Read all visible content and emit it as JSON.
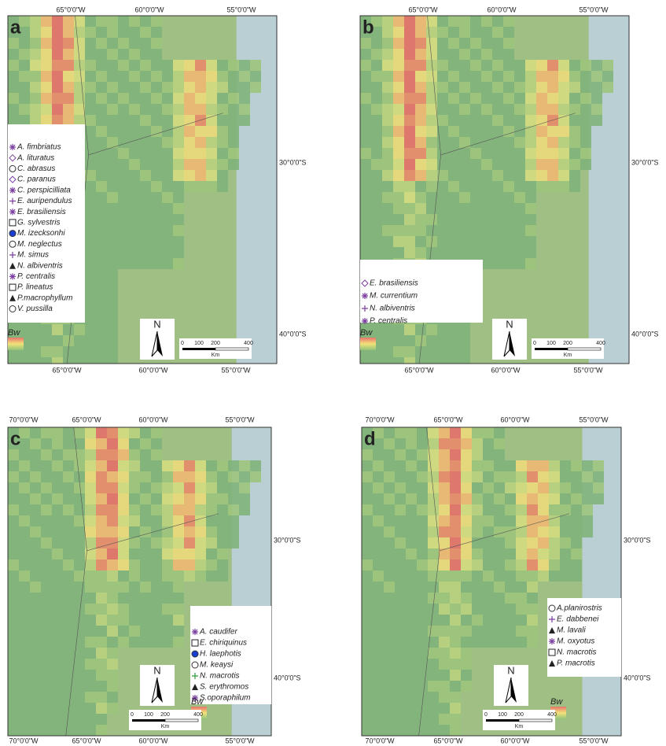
{
  "panels": [
    {
      "label": "a",
      "top_lon_labels": [
        "65°0'0\"W",
        "60°0'0\"W",
        "55°0'0\"W"
      ],
      "bottom_lon_labels": [
        "65°0'0\"W",
        "60°0'0\"W",
        "55°0'0\"W"
      ],
      "lat_labels": [
        "30°0'0\"S",
        "40°0'0\"S"
      ],
      "legend": [
        "A. fimbriatus",
        "A. lituratus",
        "C. abrasus",
        "C. paranus",
        "C. perspicilliata",
        "E. auripendulus",
        "E. brasiliensis",
        "G. sylvestris",
        "M. izecksonhi",
        "M. neglectus",
        "M. simus",
        "N. albiventris",
        "P. centralis",
        "P. lineatus",
        "P.macrophyllum",
        "V. pussilla"
      ],
      "climate": "Bw",
      "north": "N",
      "scale_ticks": [
        "0",
        "100",
        "200",
        "400"
      ],
      "scale_unit": "Km"
    },
    {
      "label": "b",
      "top_lon_labels": [
        "65°0'0\"W",
        "60°0'0\"W",
        "55°0'0\"W"
      ],
      "bottom_lon_labels": [
        "65°0'0\"W",
        "60°0'0\"W",
        "55°0'0\"W"
      ],
      "lat_labels": [
        "30°0'0\"S",
        "40°0'0\"S"
      ],
      "legend": [
        "E. brasiliensis",
        "M. currentium",
        "N. albiventris",
        "P. centralis"
      ],
      "climate": "Bw",
      "north": "N",
      "scale_ticks": [
        "0",
        "100",
        "200",
        "400"
      ],
      "scale_unit": "Km"
    },
    {
      "label": "c",
      "top_lon_labels": [
        "70°0'0\"W",
        "65°0'0\"W",
        "60°0'0\"W",
        "55°0'0\"W"
      ],
      "bottom_lon_labels": [
        "70°0'0\"W",
        "65°0'0\"W",
        "60°0'0\"W",
        "55°0'0\"W"
      ],
      "lat_labels": [
        "30°0'0\"S",
        "40°0'0\"S"
      ],
      "legend": [
        "A. caudifer",
        "E. chiriquinus",
        "H. laephotis",
        "M. keaysi",
        "N. macrotis",
        "S. erythromos",
        "S.oporaphilum"
      ],
      "climate": "Bw",
      "north": "N",
      "scale_ticks": [
        "0",
        "100",
        "200",
        "400"
      ],
      "scale_unit": "Km"
    },
    {
      "label": "d",
      "top_lon_labels": [
        "70°0'0\"W",
        "65°0'0\"W",
        "60°0'0\"W",
        "55°0'0\"W"
      ],
      "bottom_lon_labels": [
        "70°0'0\"W",
        "65°0'0\"W",
        "60°0'0\"W",
        "55°0'0\"W"
      ],
      "lat_labels": [
        "30°0'0\"S",
        "40°0'0\"S"
      ],
      "legend": [
        "A.planirostris",
        "E. dabbenei",
        "M. lavali",
        "M. oxyotus",
        "N. macrotis",
        "P. macrotis"
      ],
      "climate": "Bw",
      "north": "N",
      "scale_ticks": [
        "0",
        "100",
        "200",
        "400"
      ],
      "scale_unit": "Km"
    }
  ]
}
